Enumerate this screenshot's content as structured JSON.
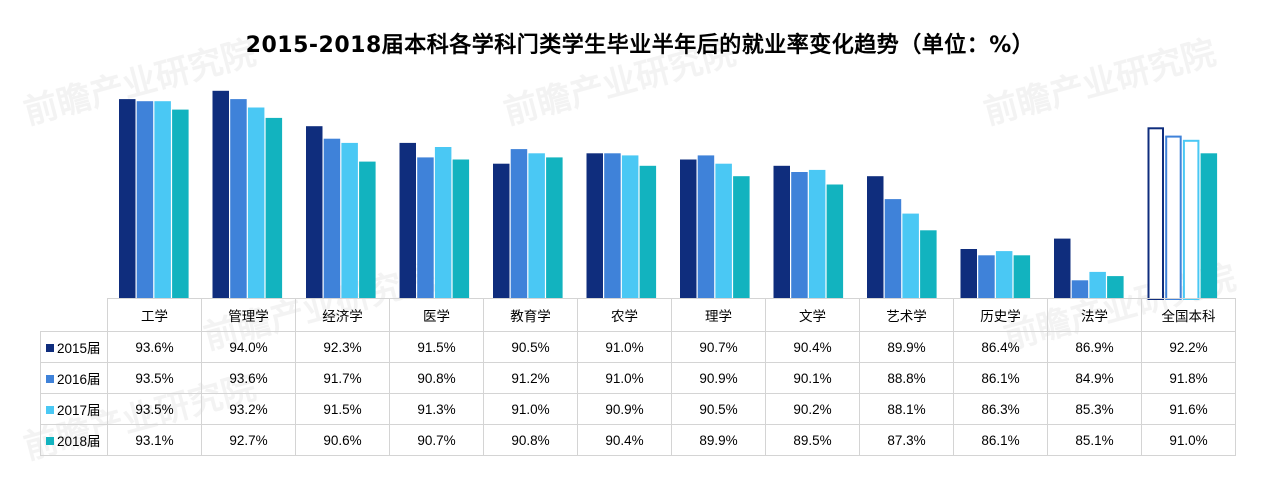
{
  "title": "2015-2018届本科各学科门类学生毕业半年后的就业率变化趋势（单位：%）",
  "colors": {
    "2015届": "#0f2d7d",
    "2016届": "#3f82d9",
    "2017届": "#4ac8f4",
    "2018届": "#12b3bf"
  },
  "chart_data": {
    "type": "bar",
    "title": "2015-2018届本科各学科门类学生毕业半年后的就业率变化趋势（单位：%）",
    "ylabel": "",
    "ylim": [
      84,
      95
    ],
    "categories": [
      "工学",
      "管理学",
      "经济学",
      "医学",
      "教育学",
      "农学",
      "理学",
      "文学",
      "艺术学",
      "历史学",
      "法学",
      "全国本科"
    ],
    "series": [
      {
        "name": "2015届",
        "values": [
          93.6,
          94.0,
          92.3,
          91.5,
          90.5,
          91.0,
          90.7,
          90.4,
          89.9,
          86.4,
          86.9,
          92.2
        ]
      },
      {
        "name": "2016届",
        "values": [
          93.5,
          93.6,
          91.7,
          90.8,
          91.2,
          91.0,
          90.9,
          90.1,
          88.8,
          86.1,
          84.9,
          91.8
        ]
      },
      {
        "name": "2017届",
        "values": [
          93.5,
          93.2,
          91.5,
          91.3,
          91.0,
          90.9,
          90.5,
          90.2,
          88.1,
          86.3,
          85.3,
          91.6
        ]
      },
      {
        "name": "2018届",
        "values": [
          93.1,
          92.7,
          90.6,
          90.7,
          90.8,
          90.4,
          89.9,
          89.5,
          87.3,
          86.1,
          85.1,
          91.0
        ]
      }
    ],
    "table": {
      "rows": [
        {
          "label": "2015届",
          "cells": [
            "93.6%",
            "94.0%",
            "92.3%",
            "91.5%",
            "90.5%",
            "91.0%",
            "90.7%",
            "90.4%",
            "89.9%",
            "86.4%",
            "86.9%",
            "92.2%"
          ]
        },
        {
          "label": "2016届",
          "cells": [
            "93.5%",
            "93.6%",
            "91.7%",
            "90.8%",
            "91.2%",
            "91.0%",
            "90.9%",
            "90.1%",
            "88.8%",
            "86.1%",
            "84.9%",
            "91.8%"
          ]
        },
        {
          "label": "2017届",
          "cells": [
            "93.5%",
            "93.2%",
            "91.5%",
            "91.3%",
            "91.0%",
            "90.9%",
            "90.5%",
            "90.2%",
            "88.1%",
            "86.3%",
            "85.3%",
            "91.6%"
          ]
        },
        {
          "label": "2018届",
          "cells": [
            "93.1%",
            "92.7%",
            "90.6%",
            "90.7%",
            "90.8%",
            "90.4%",
            "89.9%",
            "89.5%",
            "87.3%",
            "86.1%",
            "85.1%",
            "91.0%"
          ]
        }
      ]
    },
    "highlighted_category": "全国本科",
    "grid": false,
    "legend": "data-table"
  },
  "watermark": {
    "text": "前瞻产业研究院"
  }
}
